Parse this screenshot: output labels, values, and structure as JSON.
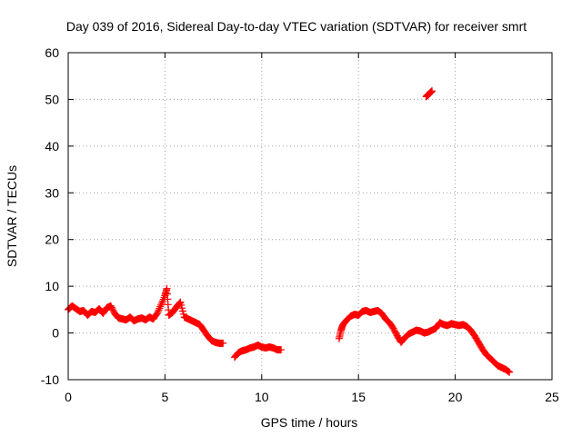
{
  "chart_data": {
    "type": "scatter",
    "title": "Day 039 of 2016, Sidereal Day-to-day VTEC variation (SDTVAR) for receiver smrt",
    "xlabel": "GPS time / hours",
    "ylabel": "SDTVAR / TECUs",
    "xlim": [
      0,
      25
    ],
    "ylim": [
      -10,
      60
    ],
    "xticks": [
      "0",
      "5",
      "10",
      "15",
      "20",
      "25"
    ],
    "yticks": [
      "-10",
      "0",
      "10",
      "20",
      "30",
      "40",
      "50",
      "60"
    ],
    "grid": true,
    "marker": "+",
    "color": "#ff0000",
    "series": [
      {
        "name": "SDTVAR",
        "points": [
          [
            0.0,
            5.0
          ],
          [
            0.2,
            5.8
          ],
          [
            0.4,
            5.2
          ],
          [
            0.6,
            4.6
          ],
          [
            0.8,
            4.8
          ],
          [
            1.0,
            3.8
          ],
          [
            1.2,
            4.6
          ],
          [
            1.4,
            4.4
          ],
          [
            1.6,
            5.2
          ],
          [
            1.8,
            4.2
          ],
          [
            2.0,
            5.4
          ],
          [
            2.2,
            5.8
          ],
          [
            2.4,
            4.2
          ],
          [
            2.6,
            3.2
          ],
          [
            2.8,
            3.0
          ],
          [
            3.0,
            2.8
          ],
          [
            3.2,
            3.4
          ],
          [
            3.4,
            2.6
          ],
          [
            3.6,
            3.0
          ],
          [
            3.8,
            3.2
          ],
          [
            4.0,
            2.8
          ],
          [
            4.2,
            3.4
          ],
          [
            4.4,
            3.0
          ],
          [
            4.6,
            4.2
          ],
          [
            4.8,
            6.0
          ],
          [
            5.0,
            8.0
          ],
          [
            5.1,
            9.5
          ],
          [
            5.2,
            3.8
          ],
          [
            5.4,
            4.4
          ],
          [
            5.6,
            5.6
          ],
          [
            5.8,
            6.6
          ],
          [
            6.0,
            3.4
          ],
          [
            6.2,
            3.0
          ],
          [
            6.4,
            2.6
          ],
          [
            6.6,
            2.2
          ],
          [
            6.8,
            1.8
          ],
          [
            7.0,
            0.6
          ],
          [
            7.2,
            -0.6
          ],
          [
            7.4,
            -1.6
          ],
          [
            7.6,
            -2.0
          ],
          [
            7.8,
            -2.2
          ],
          [
            8.0,
            -2.2
          ],
          [
            8.6,
            -5.2
          ],
          [
            8.8,
            -4.2
          ],
          [
            9.0,
            -3.8
          ],
          [
            9.2,
            -3.6
          ],
          [
            9.4,
            -3.2
          ],
          [
            9.6,
            -3.0
          ],
          [
            9.8,
            -2.6
          ],
          [
            10.0,
            -3.0
          ],
          [
            10.2,
            -3.2
          ],
          [
            10.4,
            -3.0
          ],
          [
            10.6,
            -3.2
          ],
          [
            10.8,
            -3.6
          ],
          [
            11.0,
            -3.6
          ],
          [
            14.0,
            -1.2
          ],
          [
            14.1,
            0.6
          ],
          [
            14.2,
            1.8
          ],
          [
            14.4,
            2.8
          ],
          [
            14.6,
            3.6
          ],
          [
            14.8,
            4.0
          ],
          [
            15.0,
            3.8
          ],
          [
            15.2,
            4.6
          ],
          [
            15.4,
            4.8
          ],
          [
            15.6,
            4.4
          ],
          [
            15.8,
            4.6
          ],
          [
            16.0,
            4.8
          ],
          [
            16.2,
            4.2
          ],
          [
            16.4,
            3.0
          ],
          [
            16.6,
            2.2
          ],
          [
            16.8,
            1.0
          ],
          [
            17.0,
            -0.6
          ],
          [
            17.2,
            -2.0
          ],
          [
            17.4,
            -1.0
          ],
          [
            17.6,
            -0.2
          ],
          [
            17.8,
            0.2
          ],
          [
            18.0,
            0.6
          ],
          [
            18.2,
            0.4
          ],
          [
            18.4,
            0.0
          ],
          [
            18.6,
            0.2
          ],
          [
            18.8,
            0.6
          ],
          [
            19.0,
            1.0
          ],
          [
            19.2,
            2.2
          ],
          [
            19.4,
            1.8
          ],
          [
            19.6,
            1.6
          ],
          [
            19.8,
            2.0
          ],
          [
            20.0,
            1.8
          ],
          [
            20.2,
            1.6
          ],
          [
            20.4,
            1.8
          ],
          [
            20.6,
            1.4
          ],
          [
            20.8,
            0.6
          ],
          [
            21.0,
            -0.6
          ],
          [
            21.2,
            -2.0
          ],
          [
            21.4,
            -3.4
          ],
          [
            21.6,
            -4.6
          ],
          [
            21.8,
            -5.4
          ],
          [
            22.0,
            -6.2
          ],
          [
            22.2,
            -7.0
          ],
          [
            22.4,
            -7.4
          ],
          [
            22.6,
            -7.8
          ],
          [
            22.8,
            -8.4
          ],
          [
            18.5,
            50.6
          ],
          [
            18.6,
            51.0
          ],
          [
            18.7,
            51.4
          ],
          [
            18.8,
            51.8
          ]
        ]
      }
    ]
  }
}
